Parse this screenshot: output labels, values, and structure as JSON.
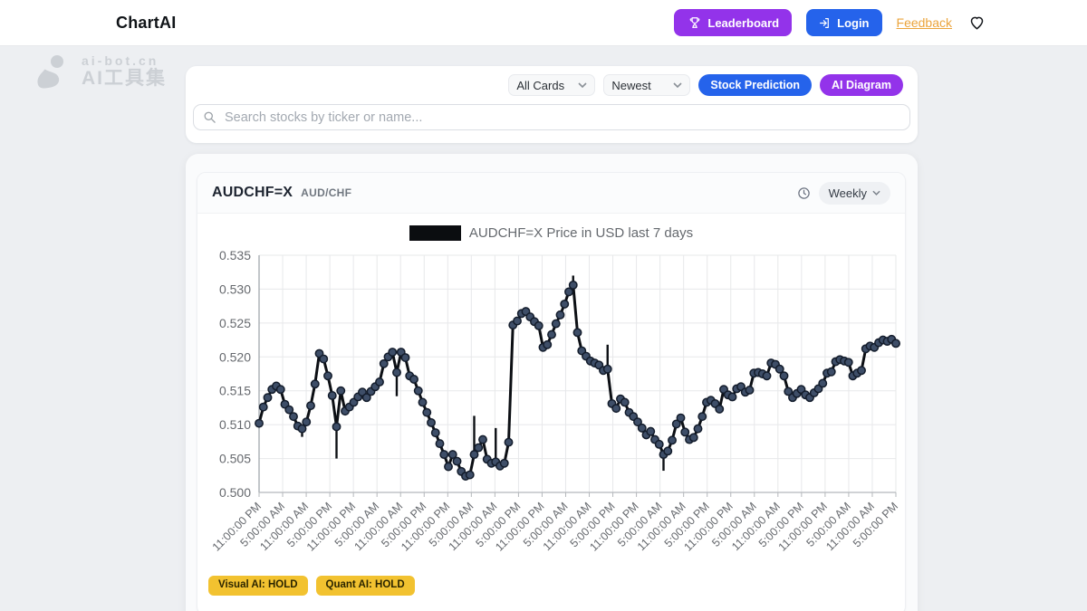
{
  "header": {
    "brand": "ChartAI",
    "leaderboard_label": "Leaderboard",
    "login_label": "Login",
    "feedback_label": "Feedback"
  },
  "watermark": {
    "line1": "ai-bot.cn",
    "line2": "AI工具集"
  },
  "filters": {
    "cards_filter_value": "All Cards",
    "sort_filter_value": "Newest",
    "stock_prediction_label": "Stock Prediction",
    "ai_diagram_label": "AI Diagram",
    "search_placeholder": "Search stocks by ticker or name..."
  },
  "card": {
    "ticker": "AUDCHF=X",
    "pair": "AUD/CHF",
    "interval_value": "Weekly",
    "badges": [
      {
        "label": "Visual AI: HOLD"
      },
      {
        "label": "Quant AI: HOLD"
      }
    ]
  },
  "colors": {
    "purple": "#9333ea",
    "blue": "#2563eb",
    "amber_link": "#eba43c",
    "badge_yellow": "#f2c230",
    "grid": "#e7e8ea",
    "axis": "#b5b8bc",
    "tick_text": "#66696e",
    "line": "#0c0f14",
    "point_fill": "#3e4e68",
    "point_stroke": "#131c2b"
  },
  "chart_data": {
    "type": "line",
    "title": "AUDCHF=X Price in USD last 7 days",
    "legend_label": "AUDCHF=X Price in USD last 7 days",
    "legend_position": "top",
    "grid": true,
    "ylim": [
      0.5,
      0.535
    ],
    "ytick_step": 0.005,
    "ytick_labels": [
      "0.500",
      "0.505",
      "0.510",
      "0.515",
      "0.520",
      "0.525",
      "0.530",
      "0.535"
    ],
    "x_tick_labels": [
      "11:00:00 PM",
      "5:00:00 AM",
      "11:00:00 AM",
      "5:00:00 PM",
      "11:00:00 PM",
      "5:00:00 AM",
      "11:00:00 AM",
      "5:00:00 PM",
      "11:00:00 PM",
      "5:00:00 AM",
      "11:00:00 AM",
      "5:00:00 PM",
      "11:00:00 PM",
      "5:00:00 AM",
      "11:00:00 AM",
      "5:00:00 PM",
      "11:00:00 PM",
      "5:00:00 AM",
      "11:00:00 AM",
      "5:00:00 PM",
      "11:00:00 PM",
      "5:00:00 AM",
      "11:00:00 AM",
      "5:00:00 PM",
      "11:00:00 PM",
      "5:00:00 AM",
      "11:00:00 AM",
      "5:00:00 PM"
    ],
    "values": [
      0.5102,
      0.5126,
      0.514,
      0.5152,
      0.5157,
      0.5152,
      0.513,
      0.5122,
      0.5112,
      0.5098,
      0.5094,
      0.5104,
      0.5128,
      0.516,
      0.5205,
      0.5197,
      0.5172,
      0.5143,
      0.5097,
      0.515,
      0.512,
      0.5126,
      0.5133,
      0.5141,
      0.5148,
      0.514,
      0.5149,
      0.5156,
      0.5163,
      0.519,
      0.52,
      0.5207,
      0.5177,
      0.5207,
      0.5199,
      0.5172,
      0.5167,
      0.515,
      0.5133,
      0.5118,
      0.5103,
      0.5088,
      0.5072,
      0.5056,
      0.5038,
      0.5056,
      0.5046,
      0.5031,
      0.5024,
      0.5026,
      0.5056,
      0.5066,
      0.5078,
      0.5049,
      0.5043,
      0.5045,
      0.5039,
      0.5043,
      0.5074,
      0.5247,
      0.5253,
      0.5264,
      0.5267,
      0.5259,
      0.5252,
      0.5246,
      0.5214,
      0.5218,
      0.5233,
      0.5249,
      0.5262,
      0.5278,
      0.5296,
      0.5306,
      0.5236,
      0.5209,
      0.5201,
      0.5194,
      0.5191,
      0.5188,
      0.518,
      0.5182,
      0.5131,
      0.5124,
      0.5138,
      0.5133,
      0.5118,
      0.5112,
      0.5104,
      0.5095,
      0.5085,
      0.509,
      0.5078,
      0.5071,
      0.5056,
      0.5061,
      0.5077,
      0.5101,
      0.511,
      0.5089,
      0.5078,
      0.5081,
      0.5094,
      0.5112,
      0.5133,
      0.5136,
      0.5131,
      0.5123,
      0.5152,
      0.5144,
      0.5141,
      0.5153,
      0.5156,
      0.5148,
      0.5151,
      0.5176,
      0.5177,
      0.5175,
      0.5172,
      0.5191,
      0.5189,
      0.5182,
      0.5172,
      0.5149,
      0.514,
      0.5146,
      0.5152,
      0.5144,
      0.514,
      0.5147,
      0.5153,
      0.5161,
      0.5176,
      0.5178,
      0.5193,
      0.5196,
      0.5194,
      0.5192,
      0.5172,
      0.5176,
      0.518,
      0.5212,
      0.5216,
      0.5214,
      0.5221,
      0.5225,
      0.5223,
      0.5226,
      0.522
    ],
    "whiskers": [
      {
        "index": 10,
        "to": 0.5082
      },
      {
        "index": 18,
        "to": 0.505
      },
      {
        "index": 32,
        "to": 0.5142
      },
      {
        "index": 50,
        "to": 0.5113
      },
      {
        "index": 55,
        "to": 0.5095
      },
      {
        "index": 73,
        "to": 0.532
      },
      {
        "index": 81,
        "to": 0.5218
      },
      {
        "index": 94,
        "to": 0.5032
      }
    ]
  }
}
